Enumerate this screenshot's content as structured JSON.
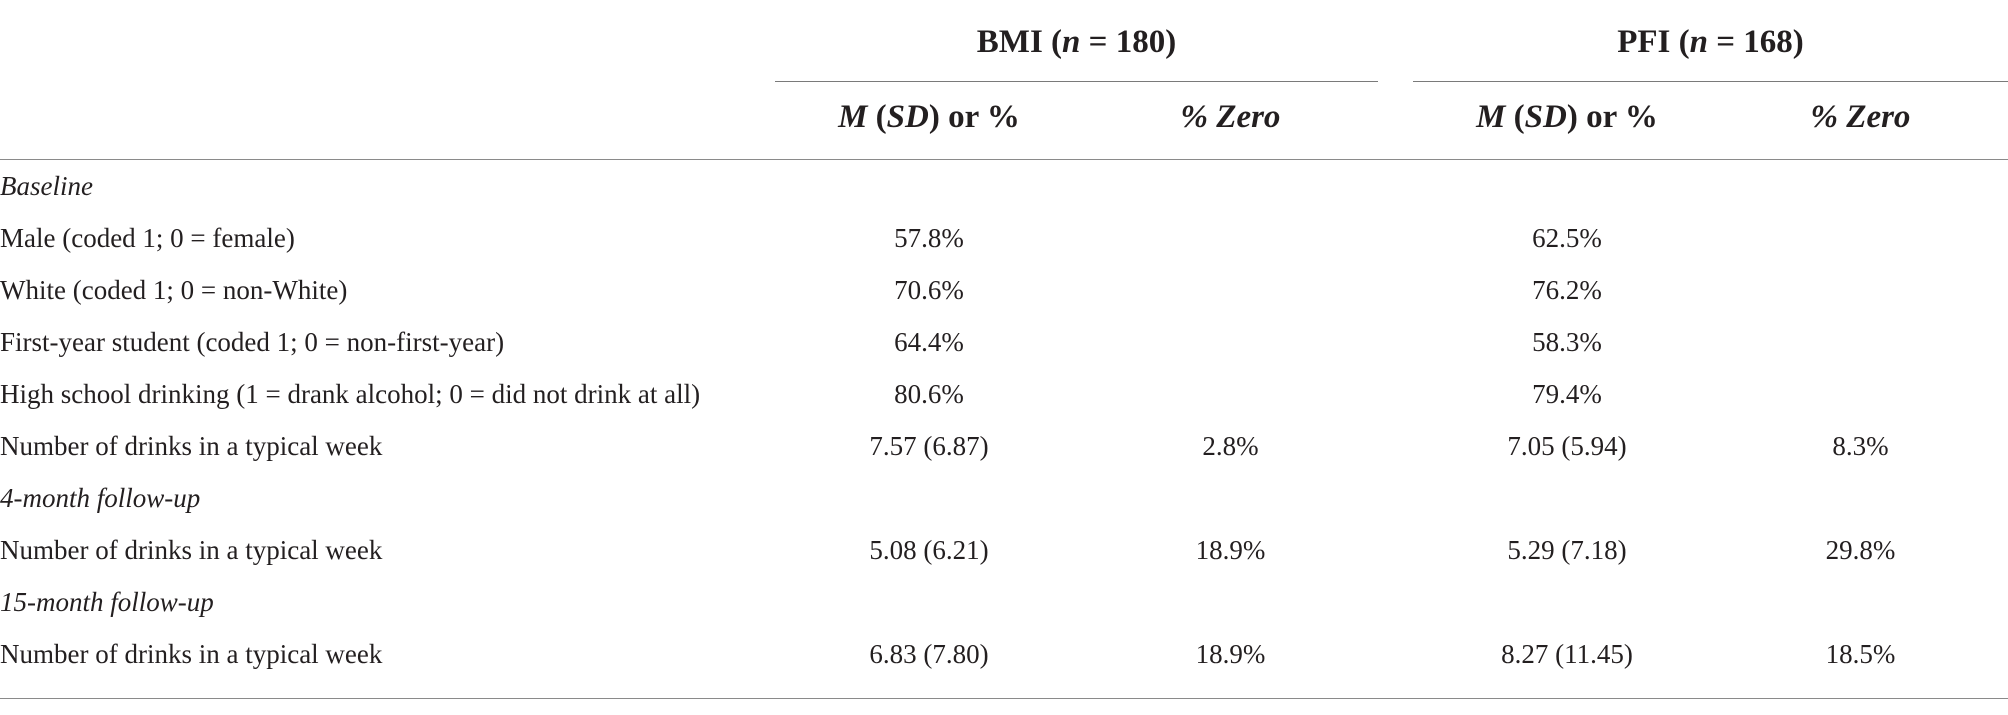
{
  "table": {
    "groups": [
      {
        "name": "BMI",
        "n_label": "n",
        "n_eq": " = ",
        "n_value": "180"
      },
      {
        "name": "PFI",
        "n_label": "n",
        "n_eq": " = ",
        "n_value": "168"
      }
    ],
    "subheaders": {
      "m": "M",
      "sd": "SD",
      "or_pct": " or %",
      "zero": "% Zero"
    },
    "rows": [
      {
        "type": "section",
        "label": "Baseline"
      },
      {
        "type": "data",
        "label": "Male (coded 1; 0 = female)",
        "bmi_m": "57.8%",
        "bmi_zero": "",
        "pfi_m": "62.5%",
        "pfi_zero": ""
      },
      {
        "type": "data",
        "label": "White (coded 1; 0 = non-White)",
        "bmi_m": "70.6%",
        "bmi_zero": "",
        "pfi_m": "76.2%",
        "pfi_zero": ""
      },
      {
        "type": "data",
        "label": "First-year student (coded 1; 0 = non-first-year)",
        "bmi_m": "64.4%",
        "bmi_zero": "",
        "pfi_m": "58.3%",
        "pfi_zero": ""
      },
      {
        "type": "data",
        "label": "High school drinking (1 = drank alcohol; 0 = did not drink at all)",
        "bmi_m": "80.6%",
        "bmi_zero": "",
        "pfi_m": "79.4%",
        "pfi_zero": ""
      },
      {
        "type": "data",
        "label": "Number of drinks in a typical week",
        "bmi_m": "7.57 (6.87)",
        "bmi_zero": "2.8%",
        "pfi_m": "7.05 (5.94)",
        "pfi_zero": "8.3%"
      },
      {
        "type": "section",
        "label": "4-month follow-up"
      },
      {
        "type": "data",
        "label": "Number of drinks in a typical week",
        "bmi_m": "5.08 (6.21)",
        "bmi_zero": "18.9%",
        "pfi_m": "5.29 (7.18)",
        "pfi_zero": "29.8%"
      },
      {
        "type": "section",
        "label": "15-month follow-up"
      },
      {
        "type": "data",
        "label": "Number of drinks in a typical week",
        "bmi_m": "6.83 (7.80)",
        "bmi_zero": "18.9%",
        "pfi_m": "8.27 (11.45)",
        "pfi_zero": "18.5%"
      }
    ]
  }
}
